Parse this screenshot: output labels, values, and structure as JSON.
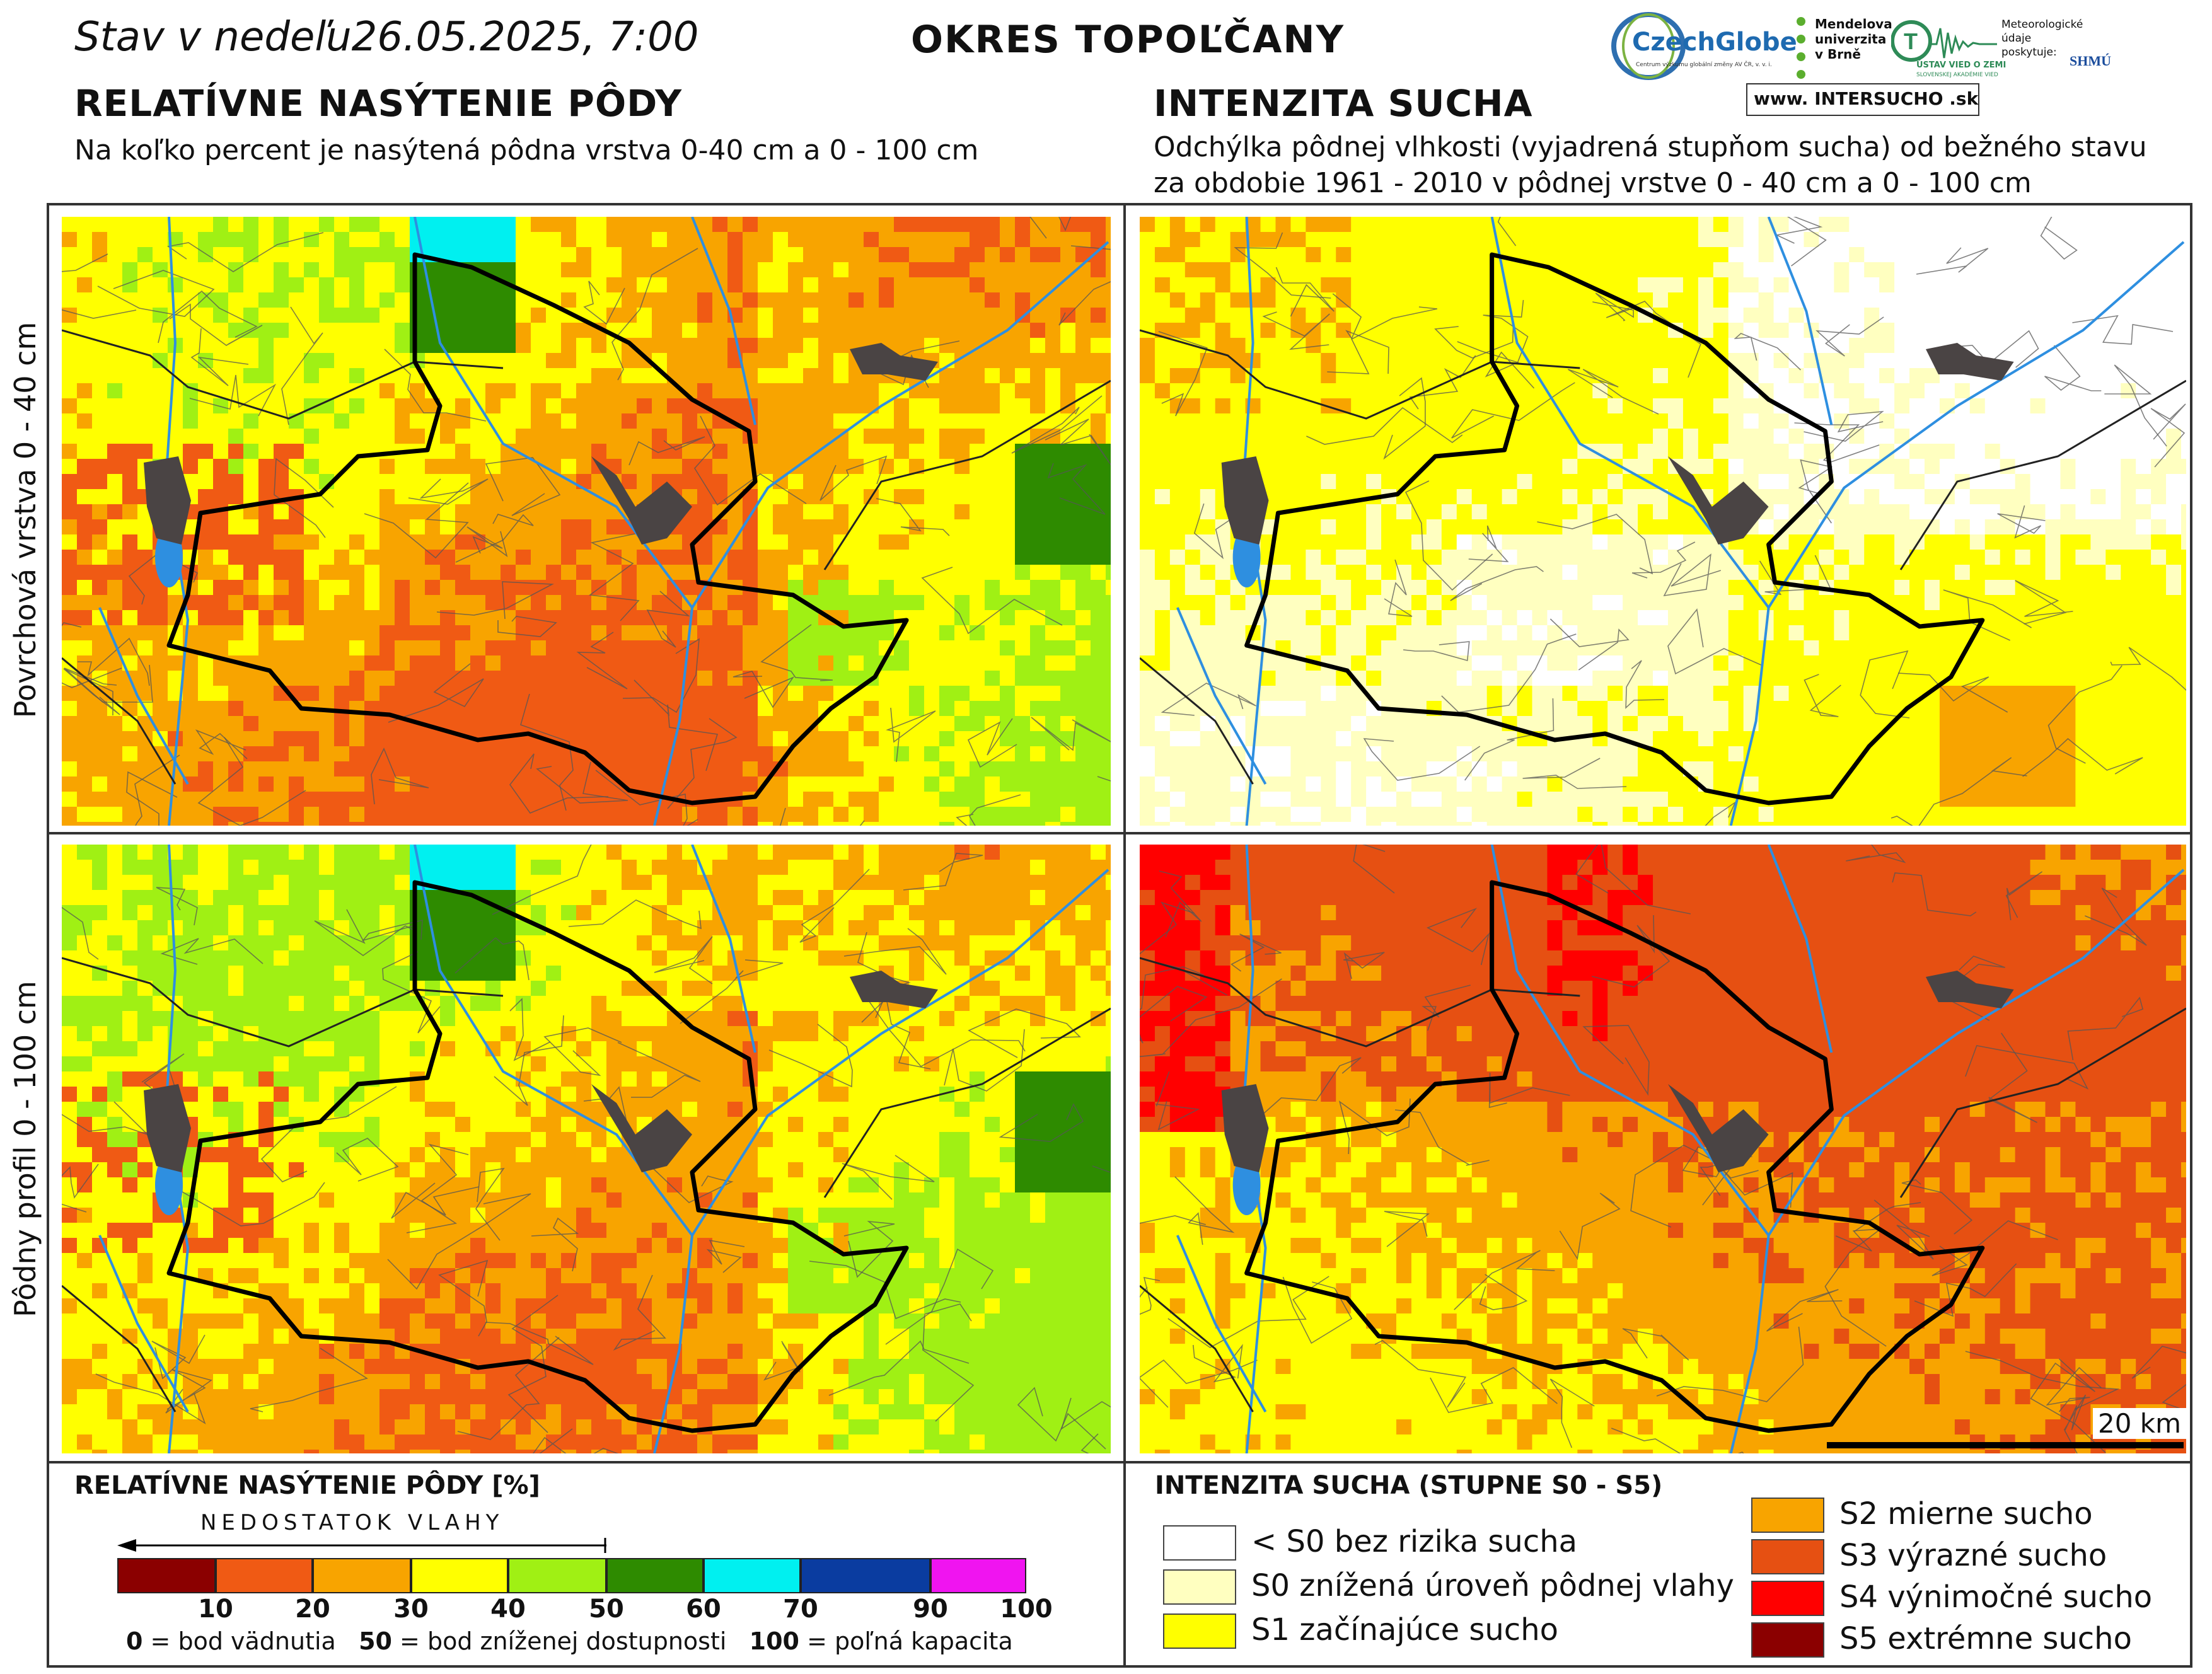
{
  "header": {
    "date_line": "Stav v nedeľu26.05.2025, 7:00",
    "district": "OKRES  TOPOĽČANY",
    "logos": {
      "czechglobe": "CzechGlobe",
      "czechglobe_sub": "Centrum výzkumu globální změny AV ČR, v. v. i.",
      "mendelu": "Mendelova univerzita v Brně",
      "uvz": "ÚSTAV VIED O ZEMI",
      "uvz_sub": "SLOVENSKEJ AKADÉMIE VIED",
      "meteo": "Meteorologické údaje poskytuje:",
      "shmu": "SHMÚ",
      "intersucho": "www. INTERSUCHO .sk"
    }
  },
  "left_section": {
    "title": "RELATÍVNE NASÝTENIE PÔDY",
    "subtitle": "Na koľko percent je nasýtená pôdna vrstva 0-40 cm a 0 - 100 cm"
  },
  "right_section": {
    "title": "INTENZITA SUCHA",
    "subtitle_line1": "Odchýlka pôdnej vlhkosti (vyjadrená stupňom sucha) od bežného stavu",
    "subtitle_line2": "za obdobie 1961 - 2010 v pôdnej vrstve 0 - 40 cm a 0 - 100 cm"
  },
  "row_labels": {
    "top": "Povrchová vrstva 0 - 40 cm",
    "bottom": "Pôdny profil 0 - 100 cm"
  },
  "scale_bar": {
    "label": "20 km"
  },
  "legend_left": {
    "title": "RELATÍVNE NASÝTENIE PÔDY [%]",
    "arrow_label": "NEDOSTATOK VLAHY",
    "bins": [
      {
        "color": "#8B0000"
      },
      {
        "color": "#F05A14"
      },
      {
        "color": "#F8A400"
      },
      {
        "color": "#FFFF00"
      },
      {
        "color": "#A0F014"
      },
      {
        "color": "#2E8B00"
      },
      {
        "color": "#00F0F0"
      },
      {
        "color": "#0A3CA0"
      },
      {
        "color": "#F014F0"
      }
    ],
    "ticks": [
      "10",
      "20",
      "30",
      "40",
      "50",
      "60",
      "70",
      "90",
      "100"
    ],
    "foot": {
      "v0": "0",
      "t0": " = bod vädnutia",
      "v50": "50",
      "t50": " = bod zníženej dostupnosti",
      "v100": "100",
      "t100": " = poľná kapacita"
    }
  },
  "legend_right": {
    "title": "INTENZITA SUCHA (STUPNE S0 - S5)",
    "classes": [
      {
        "label": "< S0 bez rizika sucha",
        "color": "#FFFFFF"
      },
      {
        "label": "S0 znížená úroveň pôdnej vlahy",
        "color": "#FFFFC0"
      },
      {
        "label": "S1 začínajúce sucho",
        "color": "#FFFF00"
      },
      {
        "label": "S2 mierne sucho",
        "color": "#F8A400"
      },
      {
        "label": "S3 výrazné sucho",
        "color": "#E65012"
      },
      {
        "label": "S4 výnimočné sucho",
        "color": "#FF0000"
      },
      {
        "label": "S5 extrémne sucho",
        "color": "#8B0000"
      }
    ]
  },
  "map_colors": {
    "sat_orange": "#F8A400",
    "sat_yellow": "#FFFF00",
    "sat_lime": "#A0F014",
    "sat_green": "#2E8B00",
    "sat_red": "#F05A14",
    "sat_cyan": "#00F0F0",
    "sat_blue": "#0A3CA0",
    "dr_white": "#FFFFFF",
    "dr_pale": "#FFFFC0",
    "dr_s1": "#FFFF00",
    "dr_s2": "#F8A400",
    "dr_s3": "#E65012",
    "dr_s4": "#FF0000",
    "dr_s5": "#8B0000",
    "city": "#4A4444",
    "river": "#2E8FE0",
    "border": "#000000",
    "municipal": "#555555"
  }
}
